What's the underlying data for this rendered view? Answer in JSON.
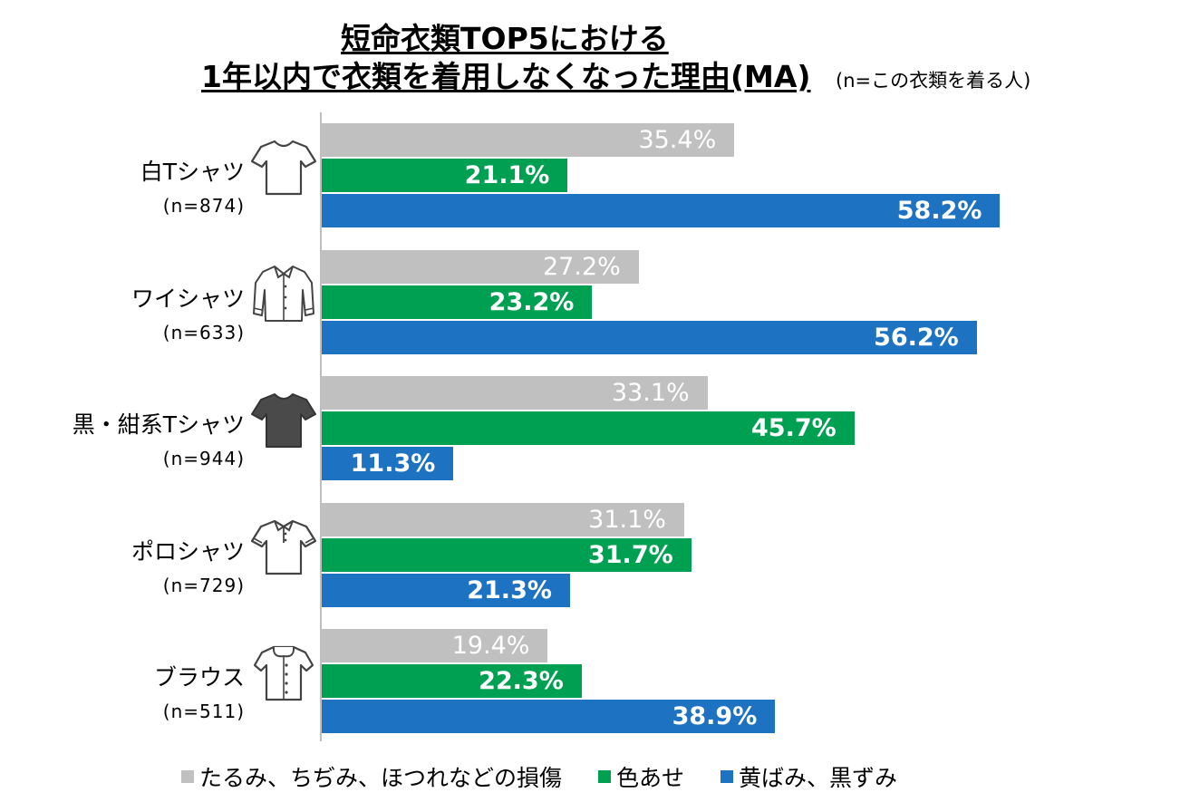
{
  "title": {
    "line1": "短命衣類TOP5における",
    "line2": "1年以内で衣類を着用しなくなった理由(MA)",
    "subtitle": "(n=この衣類を着る人)"
  },
  "colors": {
    "damage": "#c0c0c0",
    "fading": "#00a052",
    "yellowing": "#1e72c2"
  },
  "legend": [
    {
      "label": "たるみ、ちぢみ、ほつれなどの損傷",
      "color": "#c0c0c0"
    },
    {
      "label": "色あせ",
      "color": "#00a052"
    },
    {
      "label": "黄ばみ、黒ずみ",
      "color": "#1e72c2"
    }
  ],
  "categories": [
    {
      "name": "白Tシャツ",
      "n": "(n=874)",
      "icon": "white-tshirt-icon"
    },
    {
      "name": "ワイシャツ",
      "n": "(n=633)",
      "icon": "dress-shirt-icon"
    },
    {
      "name": "黒・紺系Tシャツ",
      "n": "(n=944)",
      "icon": "dark-tshirt-icon"
    },
    {
      "name": "ポロシャツ",
      "n": "(n=729)",
      "icon": "polo-shirt-icon"
    },
    {
      "name": "ブラウス",
      "n": "(n=511)",
      "icon": "blouse-icon"
    }
  ],
  "chart_data": {
    "type": "bar",
    "orientation": "horizontal",
    "title": "短命衣類TOP5における 1年以内で衣類を着用しなくなった理由(MA)",
    "categories": [
      "白Tシャツ",
      "ワイシャツ",
      "黒・紺系Tシャツ",
      "ポロシャツ",
      "ブラウス"
    ],
    "series": [
      {
        "name": "たるみ、ちぢみ、ほつれなどの損傷",
        "values": [
          35.4,
          27.2,
          33.1,
          31.1,
          19.4
        ],
        "labels": [
          "35.4%",
          "27.2%",
          "33.1%",
          "31.1%",
          "19.4%"
        ]
      },
      {
        "name": "色あせ",
        "values": [
          21.1,
          23.2,
          45.7,
          31.7,
          22.3
        ],
        "labels": [
          "21.1%",
          "23.2%",
          "45.7%",
          "31.7%",
          "22.3%"
        ]
      },
      {
        "name": "黄ばみ、黒ずみ",
        "values": [
          58.2,
          56.2,
          11.3,
          21.3,
          38.9
        ],
        "labels": [
          "58.2%",
          "56.2%",
          "11.3%",
          "21.3%",
          "38.9%"
        ]
      }
    ],
    "xlim": [
      0,
      100
    ],
    "unit": "%",
    "legend_position": "bottom",
    "grid": false
  }
}
